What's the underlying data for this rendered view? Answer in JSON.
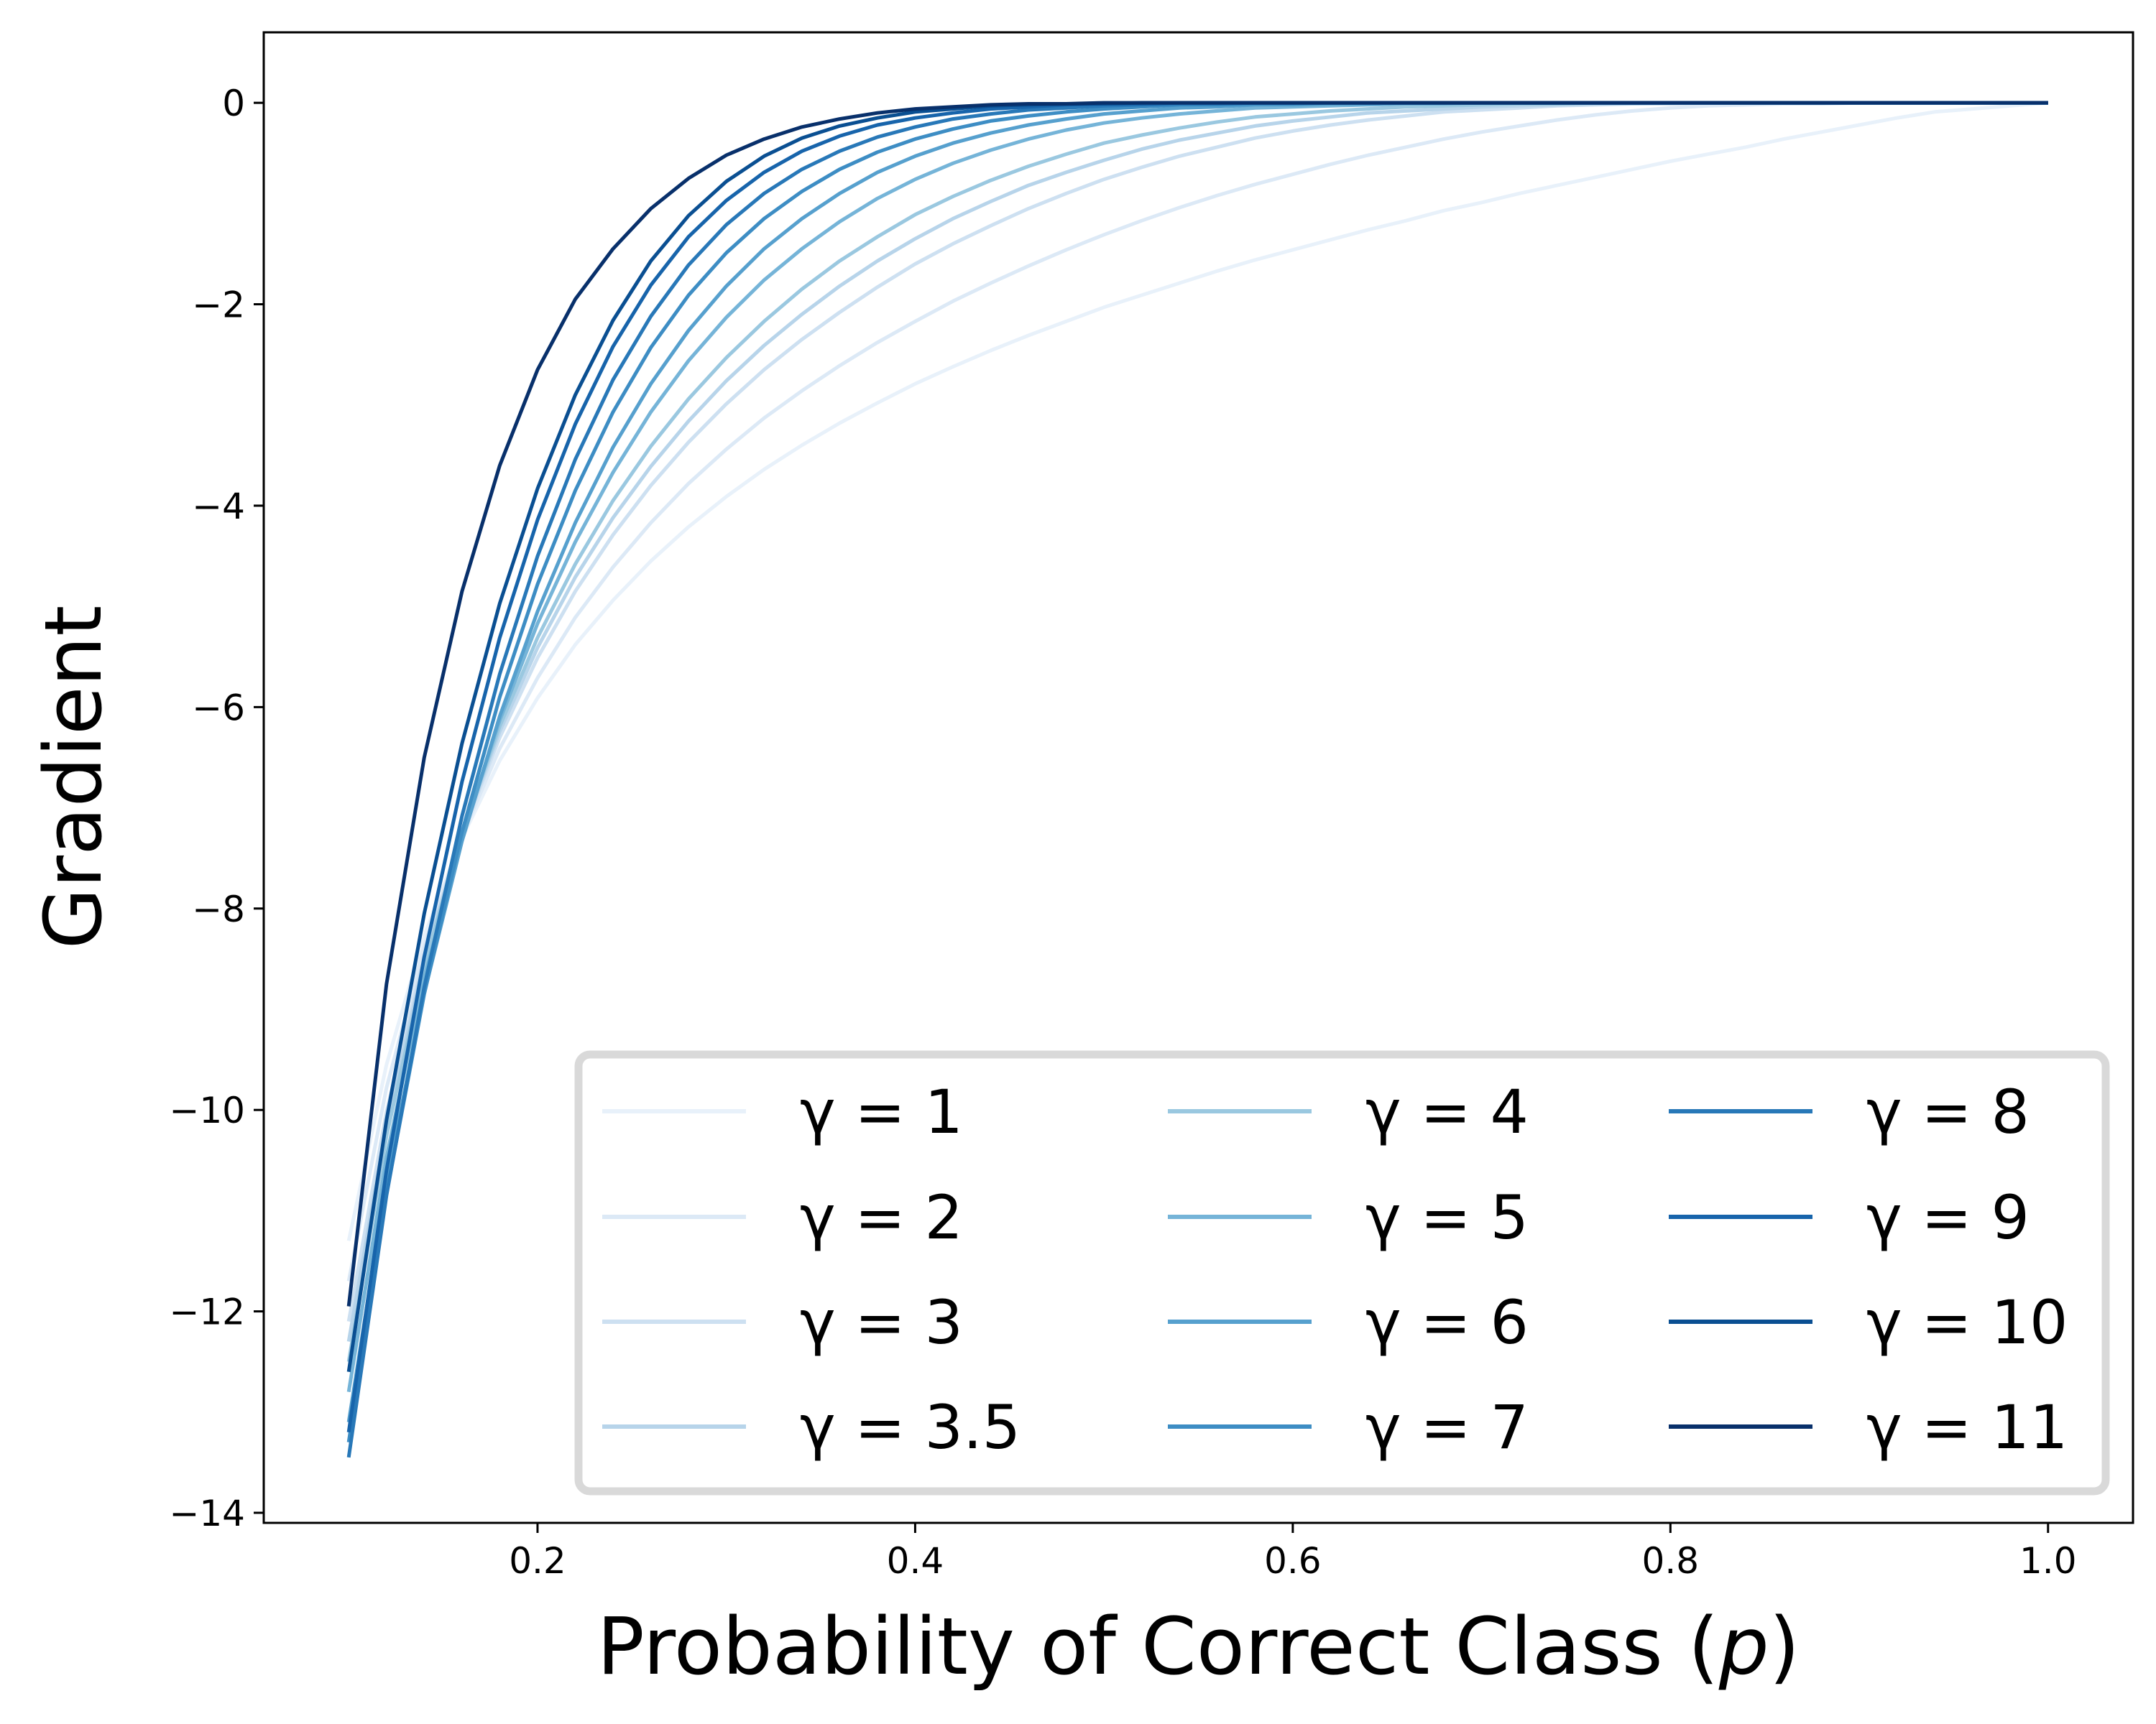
{
  "chart_data": {
    "type": "line",
    "title": "",
    "xlabel": "Probability of Correct Class (",
    "xlabel_var": "p",
    "xlabel_close": ")",
    "ylabel": "Gradient",
    "xlim": [
      0.055,
      1.045
    ],
    "ylim": [
      -14.1,
      0.7
    ],
    "xticks": [
      0.2,
      0.4,
      0.6,
      0.8,
      1.0
    ],
    "xtick_labels": [
      "0.2",
      "0.4",
      "0.6",
      "0.8",
      "1.0"
    ],
    "yticks": [
      0,
      -2,
      -4,
      -6,
      -8,
      -10,
      -12,
      -14
    ],
    "ytick_labels": [
      "0",
      "−2",
      "−4",
      "−6",
      "−8",
      "−10",
      "−12",
      "−14"
    ],
    "grid": false,
    "legend_position": "lower-right",
    "legend_columns": 3,
    "x": [
      0.1,
      0.12,
      0.14,
      0.16,
      0.18,
      0.2,
      0.22,
      0.24,
      0.26,
      0.28,
      0.3,
      0.32,
      0.34,
      0.36,
      0.38,
      0.4,
      0.42,
      0.44,
      0.46,
      0.48,
      0.5,
      0.52,
      0.54,
      0.56,
      0.58,
      0.6,
      0.62,
      0.64,
      0.66,
      0.68,
      0.7,
      0.72,
      0.74,
      0.76,
      0.78,
      0.8,
      0.82,
      0.84,
      0.86,
      0.88,
      0.9,
      0.92,
      0.94,
      0.96,
      0.98,
      1.0
    ],
    "series": [
      {
        "name": "γ = 1",
        "color": "#e8f1fa",
        "values": [
          -11.3,
          -9.55,
          -8.27,
          -7.3,
          -6.53,
          -5.91,
          -5.38,
          -4.94,
          -4.55,
          -4.21,
          -3.91,
          -3.64,
          -3.4,
          -3.18,
          -2.98,
          -2.79,
          -2.62,
          -2.46,
          -2.31,
          -2.17,
          -2.03,
          -1.91,
          -1.79,
          -1.67,
          -1.56,
          -1.46,
          -1.36,
          -1.26,
          -1.17,
          -1.07,
          -0.99,
          -0.9,
          -0.82,
          -0.74,
          -0.66,
          -0.58,
          -0.51,
          -0.44,
          -0.36,
          -0.29,
          -0.22,
          -0.15,
          -0.09,
          -0.06,
          -0.03,
          0.0
        ]
      },
      {
        "name": "γ = 2",
        "color": "#dce9f6",
        "values": [
          -11.7,
          -9.78,
          -8.37,
          -7.28,
          -6.41,
          -5.71,
          -5.11,
          -4.61,
          -4.17,
          -3.78,
          -3.44,
          -3.13,
          -2.86,
          -2.61,
          -2.38,
          -2.17,
          -1.97,
          -1.79,
          -1.62,
          -1.46,
          -1.31,
          -1.17,
          -1.04,
          -0.92,
          -0.81,
          -0.71,
          -0.61,
          -0.52,
          -0.44,
          -0.36,
          -0.29,
          -0.23,
          -0.17,
          -0.12,
          -0.08,
          -0.05,
          -0.03,
          -0.02,
          -0.01,
          -0.01,
          0.0,
          0.0,
          0.0,
          0.0,
          0.0,
          0.0
        ]
      },
      {
        "name": "γ = 3",
        "color": "#cde0f1",
        "values": [
          -12.1,
          -10.02,
          -8.47,
          -7.26,
          -6.3,
          -5.51,
          -4.85,
          -4.29,
          -3.8,
          -3.37,
          -2.99,
          -2.65,
          -2.35,
          -2.08,
          -1.83,
          -1.6,
          -1.4,
          -1.22,
          -1.05,
          -0.9,
          -0.76,
          -0.64,
          -0.53,
          -0.44,
          -0.35,
          -0.28,
          -0.22,
          -0.17,
          -0.13,
          -0.09,
          -0.07,
          -0.05,
          -0.03,
          -0.02,
          -0.01,
          -0.01,
          0.0,
          0.0,
          0.0,
          0.0,
          0.0,
          0.0,
          0.0,
          0.0,
          0.0,
          0.0
        ]
      },
      {
        "name": "γ = 3.5",
        "color": "#b7d4ea",
        "values": [
          -12.3,
          -10.14,
          -8.52,
          -7.25,
          -6.24,
          -5.41,
          -4.71,
          -4.12,
          -3.61,
          -3.16,
          -2.76,
          -2.41,
          -2.1,
          -1.82,
          -1.57,
          -1.35,
          -1.15,
          -0.98,
          -0.82,
          -0.69,
          -0.57,
          -0.46,
          -0.37,
          -0.3,
          -0.23,
          -0.18,
          -0.14,
          -0.1,
          -0.08,
          -0.06,
          -0.04,
          -0.03,
          -0.02,
          -0.01,
          -0.01,
          0.0,
          0.0,
          0.0,
          0.0,
          0.0,
          0.0,
          0.0,
          0.0,
          0.0,
          0.0,
          0.0
        ]
      },
      {
        "name": "γ = 4",
        "color": "#9ac8e0",
        "values": [
          -12.5,
          -10.26,
          -8.58,
          -7.25,
          -6.19,
          -5.31,
          -4.58,
          -3.95,
          -3.41,
          -2.94,
          -2.53,
          -2.17,
          -1.85,
          -1.57,
          -1.33,
          -1.11,
          -0.93,
          -0.77,
          -0.63,
          -0.51,
          -0.4,
          -0.32,
          -0.25,
          -0.19,
          -0.14,
          -0.11,
          -0.08,
          -0.06,
          -0.04,
          -0.03,
          -0.02,
          -0.01,
          -0.01,
          0.0,
          0.0,
          0.0,
          0.0,
          0.0,
          0.0,
          0.0,
          0.0,
          0.0,
          0.0,
          0.0,
          0.0,
          0.0
        ]
      },
      {
        "name": "γ = 5",
        "color": "#75b4d8",
        "values": [
          -12.8,
          -10.47,
          -8.69,
          -7.28,
          -6.13,
          -5.17,
          -4.36,
          -3.67,
          -3.07,
          -2.56,
          -2.13,
          -1.76,
          -1.45,
          -1.18,
          -0.95,
          -0.76,
          -0.6,
          -0.47,
          -0.36,
          -0.27,
          -0.2,
          -0.15,
          -0.11,
          -0.08,
          -0.05,
          -0.04,
          -0.03,
          -0.02,
          -0.01,
          -0.01,
          0.0,
          0.0,
          0.0,
          0.0,
          0.0,
          0.0,
          0.0,
          0.0,
          0.0,
          0.0,
          0.0,
          0.0,
          0.0,
          0.0,
          0.0,
          0.0
        ]
      },
      {
        "name": "γ = 6",
        "color": "#56a0ce",
        "values": [
          -13.1,
          -10.71,
          -8.84,
          -7.33,
          -6.09,
          -5.05,
          -4.17,
          -3.42,
          -2.79,
          -2.26,
          -1.82,
          -1.45,
          -1.15,
          -0.9,
          -0.69,
          -0.53,
          -0.4,
          -0.3,
          -0.22,
          -0.16,
          -0.11,
          -0.08,
          -0.05,
          -0.04,
          -0.02,
          -0.02,
          -0.01,
          -0.01,
          0.0,
          0.0,
          0.0,
          0.0,
          0.0,
          0.0,
          0.0,
          0.0,
          0.0,
          0.0,
          0.0,
          0.0,
          0.0,
          0.0,
          0.0,
          0.0,
          0.0,
          0.0
        ]
      },
      {
        "name": "γ = 7",
        "color": "#3d8dc4",
        "values": [
          -13.3,
          -10.83,
          -8.85,
          -7.24,
          -5.9,
          -4.78,
          -3.85,
          -3.07,
          -2.43,
          -1.91,
          -1.49,
          -1.15,
          -0.88,
          -0.66,
          -0.49,
          -0.36,
          -0.26,
          -0.18,
          -0.13,
          -0.09,
          -0.06,
          -0.04,
          -0.02,
          -0.02,
          -0.01,
          -0.01,
          0.0,
          0.0,
          0.0,
          0.0,
          0.0,
          0.0,
          0.0,
          0.0,
          0.0,
          0.0,
          0.0,
          0.0,
          0.0,
          0.0,
          0.0,
          0.0,
          0.0,
          0.0,
          0.0,
          0.0
        ]
      },
      {
        "name": "γ = 8",
        "color": "#2878b8",
        "values": [
          -13.45,
          -10.85,
          -8.78,
          -7.08,
          -5.67,
          -4.5,
          -3.54,
          -2.75,
          -2.12,
          -1.61,
          -1.21,
          -0.9,
          -0.66,
          -0.48,
          -0.34,
          -0.24,
          -0.16,
          -0.11,
          -0.07,
          -0.05,
          -0.03,
          -0.02,
          -0.01,
          -0.01,
          0.0,
          0.0,
          0.0,
          0.0,
          0.0,
          0.0,
          0.0,
          0.0,
          0.0,
          0.0,
          0.0,
          0.0,
          0.0,
          0.0,
          0.0,
          0.0,
          0.0,
          0.0,
          0.0,
          0.0,
          0.0,
          0.0
        ]
      },
      {
        "name": "γ = 9",
        "color": "#1764ab",
        "values": [
          -13.2,
          -10.6,
          -8.48,
          -6.74,
          -5.31,
          -4.14,
          -3.19,
          -2.42,
          -1.81,
          -1.33,
          -0.97,
          -0.69,
          -0.48,
          -0.33,
          -0.22,
          -0.15,
          -0.1,
          -0.06,
          -0.04,
          -0.02,
          -0.01,
          -0.01,
          0.0,
          0.0,
          0.0,
          0.0,
          0.0,
          0.0,
          0.0,
          0.0,
          0.0,
          0.0,
          0.0,
          0.0,
          0.0,
          0.0,
          0.0,
          0.0,
          0.0,
          0.0,
          0.0,
          0.0,
          0.0,
          0.0,
          0.0,
          0.0
        ]
      },
      {
        "name": "γ = 10",
        "color": "#0a4f92",
        "values": [
          -12.6,
          -10.1,
          -8.05,
          -6.36,
          -4.97,
          -3.83,
          -2.9,
          -2.16,
          -1.57,
          -1.12,
          -0.78,
          -0.53,
          -0.35,
          -0.23,
          -0.15,
          -0.09,
          -0.06,
          -0.03,
          -0.02,
          -0.01,
          -0.01,
          0.0,
          0.0,
          0.0,
          0.0,
          0.0,
          0.0,
          0.0,
          0.0,
          0.0,
          0.0,
          0.0,
          0.0,
          0.0,
          0.0,
          0.0,
          0.0,
          0.0,
          0.0,
          0.0,
          0.0,
          0.0,
          0.0,
          0.0,
          0.0,
          0.0
        ]
      },
      {
        "name": "γ = 11",
        "color": "#08306b",
        "values": [
          -11.95,
          -8.75,
          -6.5,
          -4.85,
          -3.6,
          -2.65,
          -1.95,
          -1.45,
          -1.05,
          -0.75,
          -0.52,
          -0.36,
          -0.24,
          -0.16,
          -0.1,
          -0.06,
          -0.04,
          -0.02,
          -0.01,
          -0.01,
          0.0,
          0.0,
          0.0,
          0.0,
          0.0,
          0.0,
          0.0,
          0.0,
          0.0,
          0.0,
          0.0,
          0.0,
          0.0,
          0.0,
          0.0,
          0.0,
          0.0,
          0.0,
          0.0,
          0.0,
          0.0,
          0.0,
          0.0,
          0.0,
          0.0,
          0.0
        ]
      }
    ]
  }
}
